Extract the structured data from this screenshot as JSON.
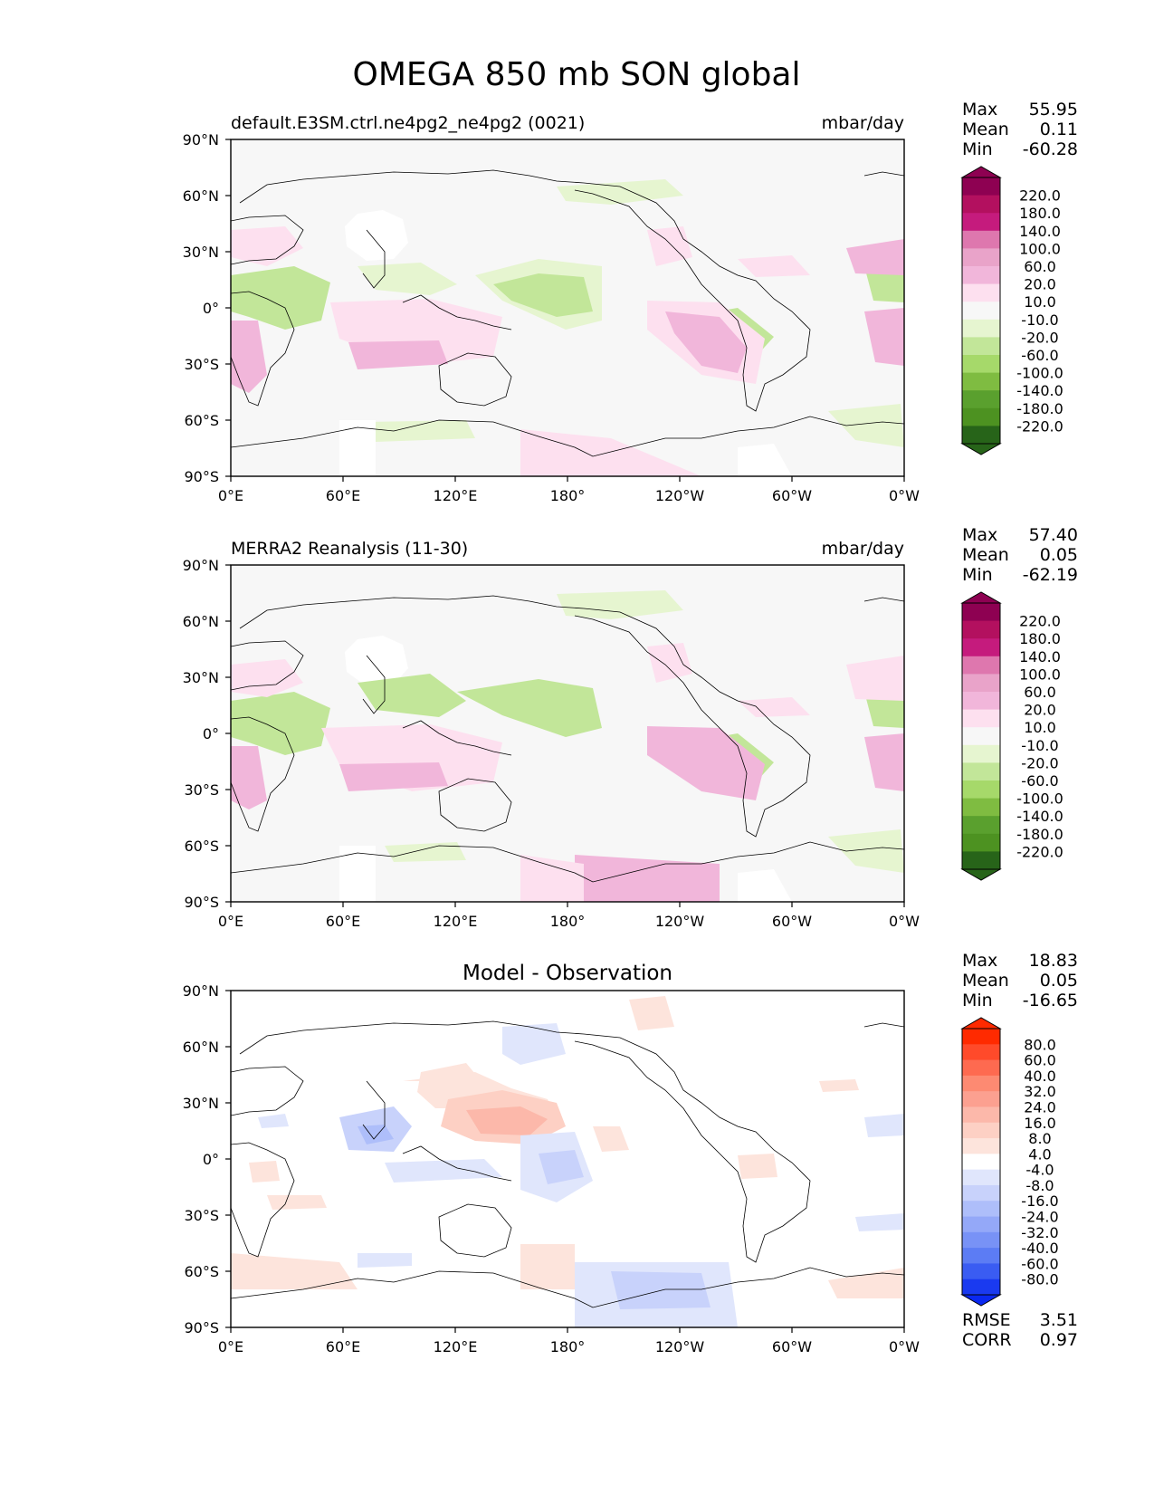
{
  "figure": {
    "title": "OMEGA 850 mb SON global"
  },
  "lat_ticks": [
    "90°N",
    "60°N",
    "30°N",
    "0°",
    "30°S",
    "60°S",
    "90°S"
  ],
  "lon_ticks": [
    "0°E",
    "60°E",
    "120°E",
    "180°",
    "120°W",
    "60°W",
    "0°W"
  ],
  "panels": [
    {
      "title_left": "default.E3SM.ctrl.ne4pg2_ne4pg2 (0021)",
      "title_center": "",
      "units": "mbar/day",
      "stats": [
        {
          "label": "Max",
          "value": "55.95"
        },
        {
          "label": "Mean",
          "value": "0.11"
        },
        {
          "label": "Min",
          "value": "-60.28"
        }
      ],
      "colorbar": {
        "labels": [
          "220.0",
          "180.0",
          "140.0",
          "100.0",
          "60.0",
          "20.0",
          "10.0",
          "-10.0",
          "-20.0",
          "-60.0",
          "-100.0",
          "-140.0",
          "-180.0",
          "-220.0"
        ],
        "colors": [
          "#8e0152",
          "#b3105f",
          "#c51b7d",
          "#de77ae",
          "#e9a3c9",
          "#f1b6da",
          "#fde0ef",
          "#f7f7f7",
          "#e6f5d0",
          "#c2e699",
          "#a6d96a",
          "#7fbc41",
          "#5aa02e",
          "#4d9221",
          "#276419"
        ],
        "top_color": "#8e0152",
        "bottom_color": "#276419"
      },
      "extra_stats": []
    },
    {
      "title_left": "MERRA2 Reanalysis (11-30)",
      "title_center": "",
      "units": "mbar/day",
      "stats": [
        {
          "label": "Max",
          "value": "57.40"
        },
        {
          "label": "Mean",
          "value": "0.05"
        },
        {
          "label": "Min",
          "value": "-62.19"
        }
      ],
      "colorbar": {
        "labels": [
          "220.0",
          "180.0",
          "140.0",
          "100.0",
          "60.0",
          "20.0",
          "10.0",
          "-10.0",
          "-20.0",
          "-60.0",
          "-100.0",
          "-140.0",
          "-180.0",
          "-220.0"
        ],
        "colors": [
          "#8e0152",
          "#b3105f",
          "#c51b7d",
          "#de77ae",
          "#e9a3c9",
          "#f1b6da",
          "#fde0ef",
          "#f7f7f7",
          "#e6f5d0",
          "#c2e699",
          "#a6d96a",
          "#7fbc41",
          "#5aa02e",
          "#4d9221",
          "#276419"
        ],
        "top_color": "#8e0152",
        "bottom_color": "#276419"
      },
      "extra_stats": []
    },
    {
      "title_left": "",
      "title_center": "Model - Observation",
      "units": "",
      "stats": [
        {
          "label": "Max",
          "value": "18.83"
        },
        {
          "label": "Mean",
          "value": "0.05"
        },
        {
          "label": "Min",
          "value": "-16.65"
        }
      ],
      "colorbar": {
        "labels": [
          "80.0",
          "60.0",
          "40.0",
          "32.0",
          "24.0",
          "16.0",
          "8.0",
          "4.0",
          "-4.0",
          "-8.0",
          "-16.0",
          "-24.0",
          "-32.0",
          "-40.0",
          "-60.0",
          "-80.0"
        ],
        "colors": [
          "#ff2a00",
          "#ff4a2a",
          "#fe6a50",
          "#fd8a72",
          "#fca090",
          "#fcb8aa",
          "#fdd0c4",
          "#fde4dc",
          "#ffffff",
          "#e0e6fc",
          "#c8d2fb",
          "#aebefa",
          "#94a8f8",
          "#7892f6",
          "#5c7cf4",
          "#3a5cf2",
          "#1a3af0"
        ],
        "top_color": "#ff2a00",
        "bottom_color": "#0a28f0"
      },
      "extra_stats": [
        {
          "label": "RMSE",
          "value": "3.51"
        },
        {
          "label": "CORR",
          "value": "0.97"
        }
      ]
    }
  ]
}
